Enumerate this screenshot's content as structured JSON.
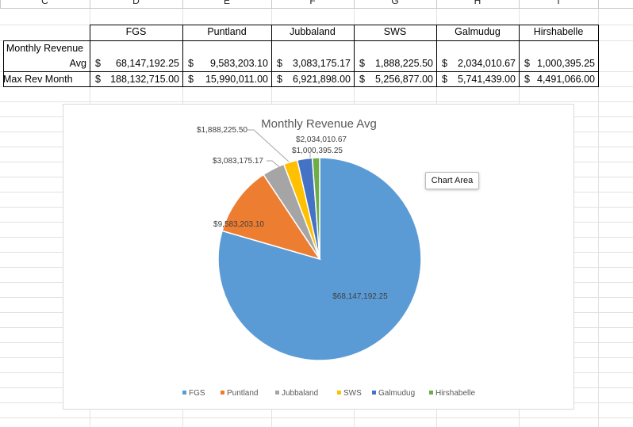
{
  "columns": [
    "C",
    "D",
    "E",
    "F",
    "G",
    "H",
    "I"
  ],
  "table": {
    "headers": [
      "FGS",
      "Puntland",
      "Jubbaland",
      "SWS",
      "Galmudug",
      "Hirshabelle"
    ],
    "rows": [
      {
        "label_line1": "Monthly Revenue",
        "label_line2": "Avg",
        "values": [
          "68,147,192.25",
          "9,583,203.10",
          "3,083,175.17",
          "1,888,225.50",
          "2,034,010.67",
          "1,000,395.25"
        ]
      },
      {
        "label": "Max Rev Month",
        "values": [
          "188,132,715.00",
          "15,990,011.00",
          "6,921,898.00",
          "5,256,877.00",
          "5,741,439.00",
          "4,491,066.00"
        ]
      }
    ],
    "currency_symbol": "$"
  },
  "tooltip": "Chart Area",
  "colors": {
    "FGS": "#5b9bd5",
    "Puntland": "#ed7d31",
    "Jubbaland": "#a5a5a5",
    "SWS": "#ffc000",
    "Galmudug": "#4472c4",
    "Hirshabelle": "#70ad47"
  },
  "chart_data": {
    "type": "pie",
    "title": "Monthly Revenue Avg",
    "categories": [
      "FGS",
      "Puntland",
      "Jubbaland",
      "SWS",
      "Galmudug",
      "Hirshabelle"
    ],
    "values": [
      68147192.25,
      9583203.1,
      3083175.17,
      1888225.5,
      2034010.67,
      1000395.25
    ],
    "data_labels": [
      "$68,147,192.25",
      "$9,583,203.10",
      "$3,083,175.17",
      "$1,888,225.50",
      "$2,034,010.67",
      "$1,000,395.25"
    ],
    "legend": "bottom"
  }
}
